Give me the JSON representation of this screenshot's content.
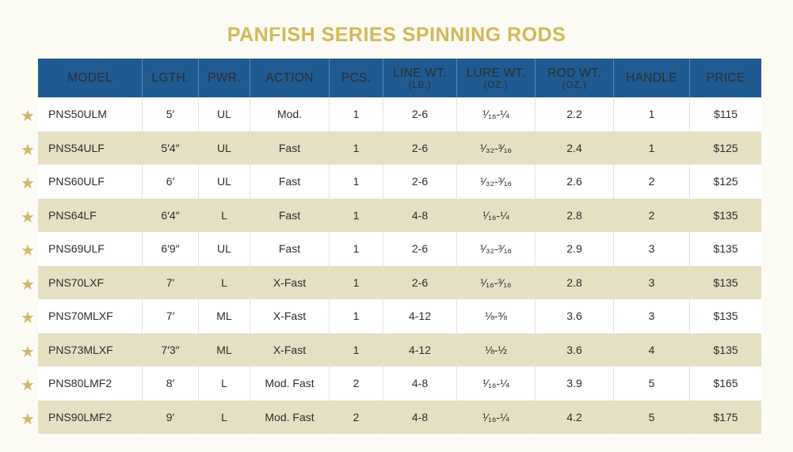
{
  "title": "PANFISH SERIES SPINNING RODS",
  "headers": [
    {
      "label": "MODEL",
      "sub": ""
    },
    {
      "label": "LGTH.",
      "sub": ""
    },
    {
      "label": "PWR.",
      "sub": ""
    },
    {
      "label": "ACTION",
      "sub": ""
    },
    {
      "label": "PCS.",
      "sub": ""
    },
    {
      "label": "LINE WT.",
      "sub": "(LB.)"
    },
    {
      "label": "LURE WT.",
      "sub": "(OZ.)"
    },
    {
      "label": "ROD WT.",
      "sub": "(OZ.)"
    },
    {
      "label": "HANDLE",
      "sub": ""
    },
    {
      "label": "PRICE",
      "sub": ""
    }
  ],
  "rows": [
    [
      "PNS50ULM",
      "5′",
      "UL",
      "Mod.",
      "1",
      "2-6",
      "¹⁄₁₆-¼",
      "2.2",
      "1",
      "$115"
    ],
    [
      "PNS54ULF",
      "5′4″",
      "UL",
      "Fast",
      "1",
      "2-6",
      "¹⁄₃₂-³⁄₁₆",
      "2.4",
      "1",
      "$125"
    ],
    [
      "PNS60ULF",
      "6′",
      "UL",
      "Fast",
      "1",
      "2-6",
      "¹⁄₃₂-³⁄₁₆",
      "2.6",
      "2",
      "$125"
    ],
    [
      "PNS64LF",
      "6′4″",
      "L",
      "Fast",
      "1",
      "4-8",
      "¹⁄₁₆-¼",
      "2.8",
      "2",
      "$135"
    ],
    [
      "PNS69ULF",
      "6′9″",
      "UL",
      "Fast",
      "1",
      "2-6",
      "¹⁄₃₂-³⁄₁₆",
      "2.9",
      "3",
      "$135"
    ],
    [
      "PNS70LXF",
      "7′",
      "L",
      "X-Fast",
      "1",
      "2-6",
      "¹⁄₁₆-³⁄₁₆",
      "2.8",
      "3",
      "$135"
    ],
    [
      "PNS70MLXF",
      "7′",
      "ML",
      "X-Fast",
      "1",
      "4-12",
      "⅛-⅜",
      "3.6",
      "3",
      "$135"
    ],
    [
      "PNS73MLXF",
      "7′3″",
      "ML",
      "X-Fast",
      "1",
      "4-12",
      "⅛-½",
      "3.6",
      "4",
      "$135"
    ],
    [
      "PNS80LMF2",
      "8′",
      "L",
      "Mod. Fast",
      "2",
      "4-8",
      "¹⁄₁₆-¼",
      "3.9",
      "5",
      "$165"
    ],
    [
      "PNS90LMF2",
      "9′",
      "L",
      "Mod. Fast",
      "2",
      "4-8",
      "¹⁄₁₆-¼",
      "4.2",
      "5",
      "$175"
    ]
  ],
  "star_icon": "star-icon",
  "colors": {
    "title": "#d2b957",
    "header_bg": "#1f5a93",
    "row_alt": "#e5dfc3",
    "star": "#cdb96a"
  }
}
